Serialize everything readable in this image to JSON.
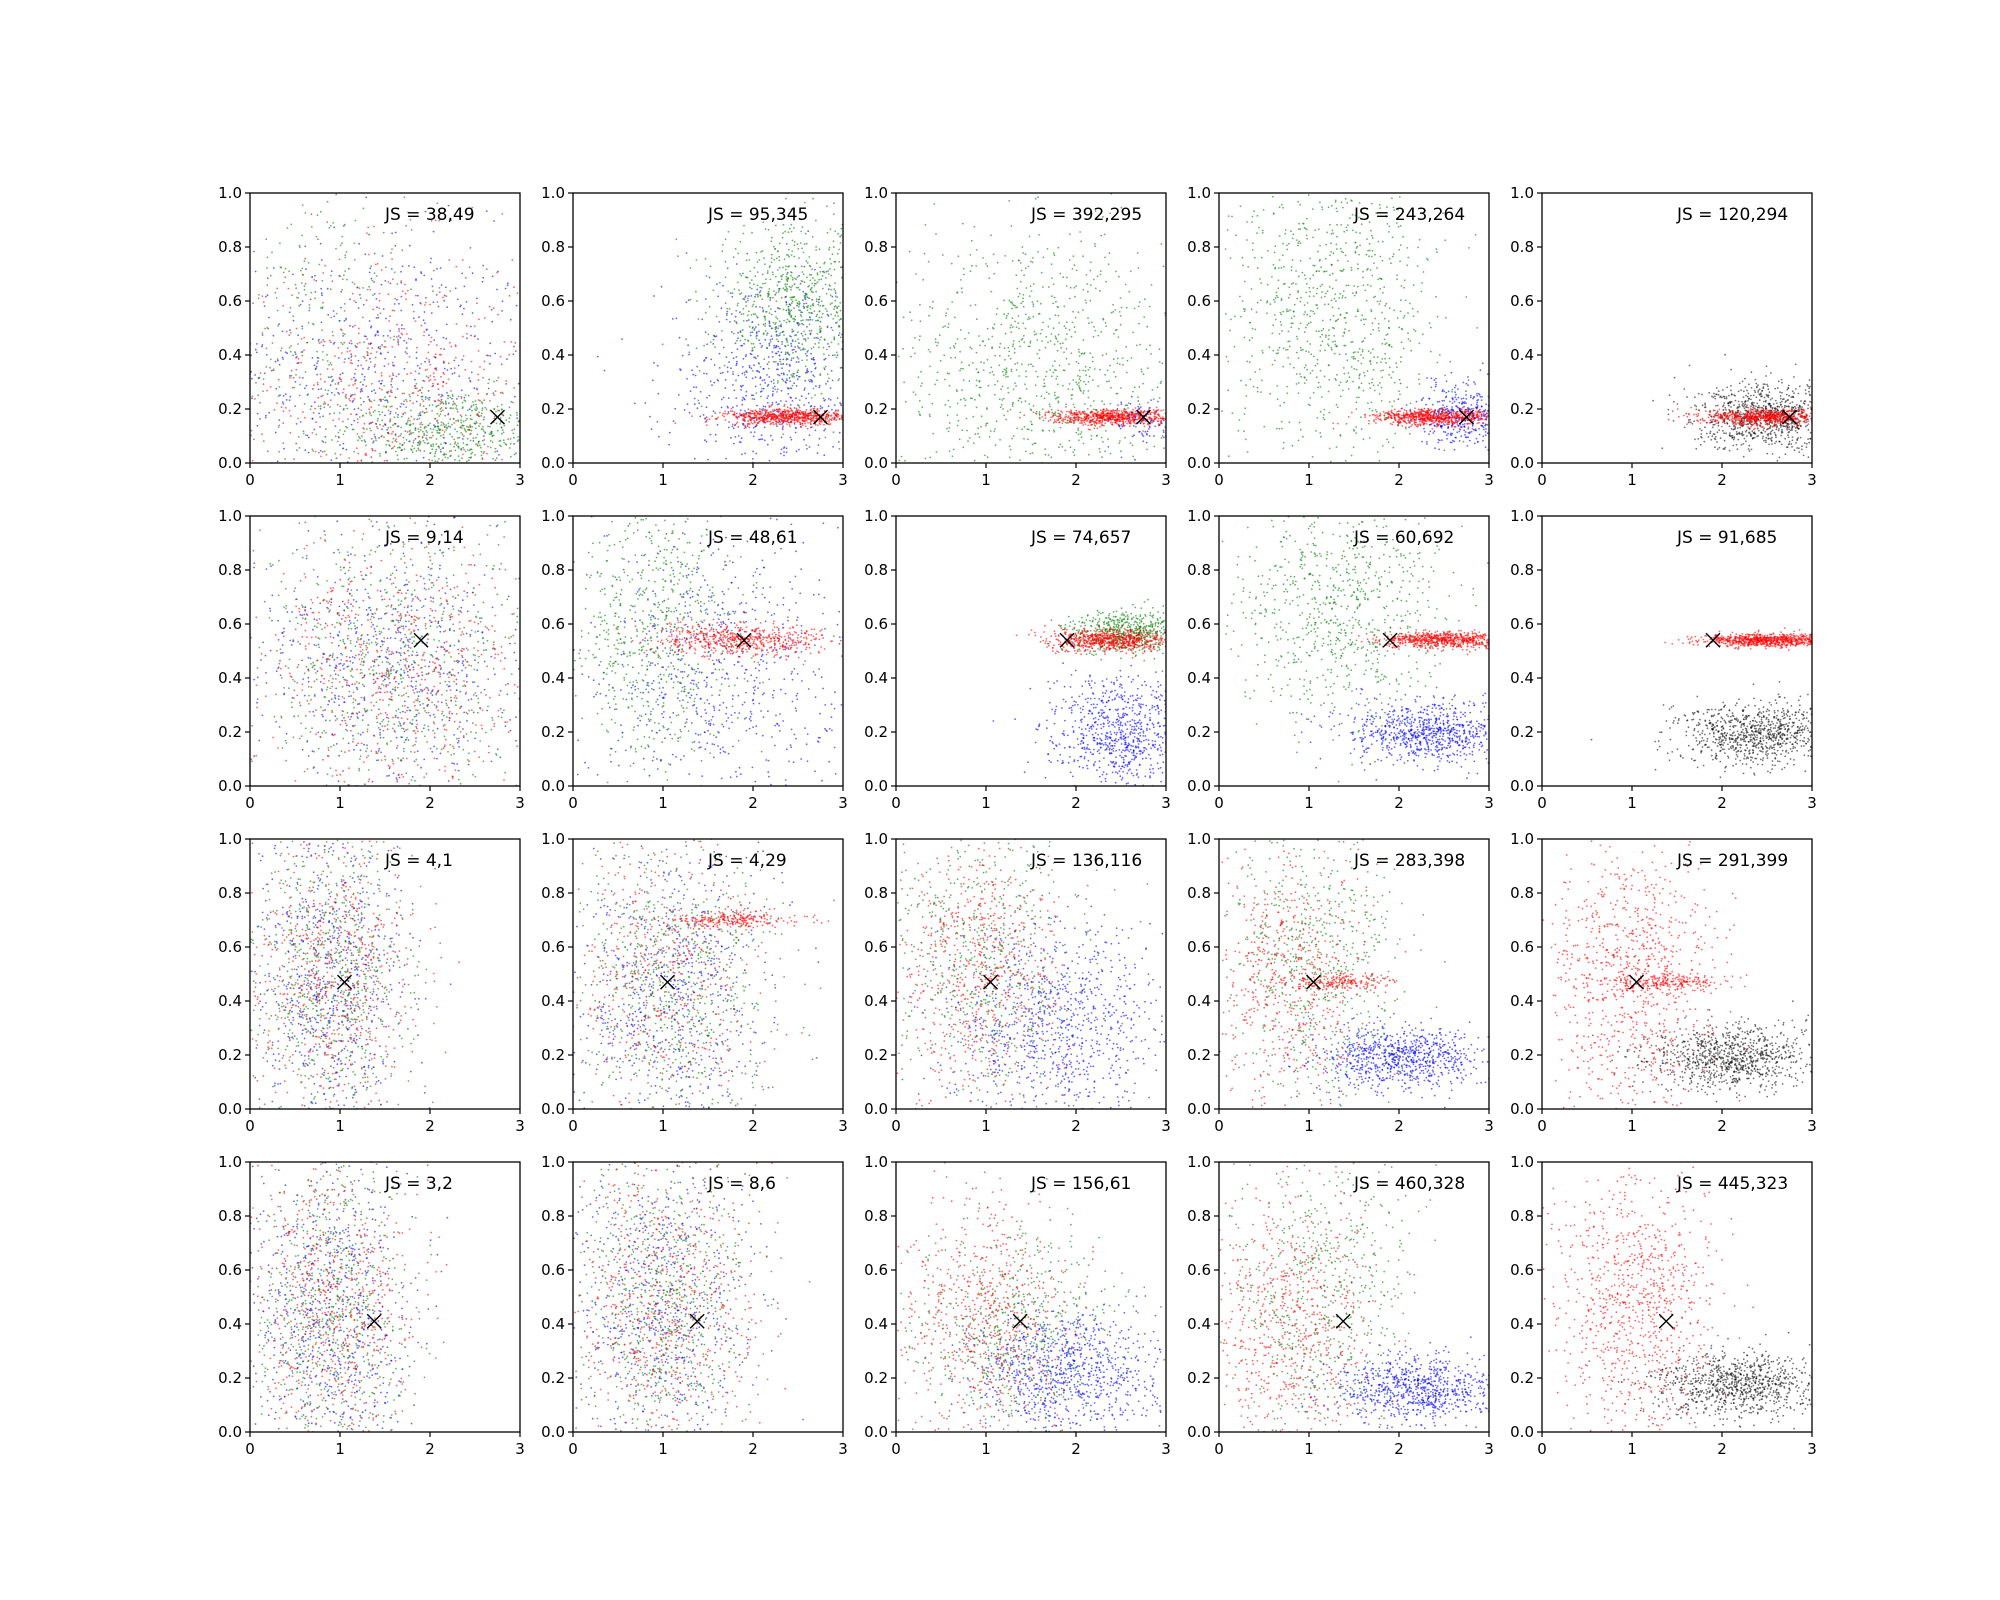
{
  "chart_data": {
    "type": "scatter",
    "layout": {
      "rows": 4,
      "cols": 5
    },
    "xlim": [
      0,
      3
    ],
    "ylim": [
      0,
      1
    ],
    "xticks": [
      "0",
      "1",
      "2",
      "3"
    ],
    "yticks": [
      "0.0",
      "0.2",
      "0.4",
      "0.6",
      "0.8",
      "1.0"
    ],
    "colors": {
      "red": "#ff0000",
      "green": "#008000",
      "blue": "#0000ff",
      "black": "#000000"
    },
    "panels": [
      {
        "label": "JS = 38,49",
        "marker": [
          2.75,
          0.17
        ],
        "clusters": [
          {
            "color": "blue",
            "n": 600,
            "cx": 1.4,
            "cy": 0.35,
            "sx": 0.9,
            "sy": 0.25
          },
          {
            "color": "green",
            "n": 600,
            "cx": 2.2,
            "cy": 0.12,
            "sx": 0.6,
            "sy": 0.08
          },
          {
            "color": "red",
            "n": 600,
            "cx": 1.6,
            "cy": 0.3,
            "sx": 0.8,
            "sy": 0.25
          },
          {
            "color": "green",
            "n": 250,
            "cx": 0.8,
            "cy": 0.55,
            "sx": 0.5,
            "sy": 0.3
          }
        ]
      },
      {
        "label": "JS = 95,345",
        "marker": [
          2.75,
          0.17
        ],
        "clusters": [
          {
            "color": "blue",
            "n": 700,
            "cx": 2.2,
            "cy": 0.3,
            "sx": 0.6,
            "sy": 0.2
          },
          {
            "color": "green",
            "n": 800,
            "cx": 2.5,
            "cy": 0.58,
            "sx": 0.45,
            "sy": 0.15
          },
          {
            "color": "red",
            "n": 700,
            "cx": 2.4,
            "cy": 0.17,
            "sx": 0.35,
            "sy": 0.015
          }
        ]
      },
      {
        "label": "JS = 392,295",
        "marker": [
          2.75,
          0.17
        ],
        "clusters": [
          {
            "color": "green",
            "n": 1000,
            "cx": 1.6,
            "cy": 0.35,
            "sx": 0.8,
            "sy": 0.28
          },
          {
            "color": "red",
            "n": 700,
            "cx": 2.4,
            "cy": 0.17,
            "sx": 0.35,
            "sy": 0.015
          },
          {
            "color": "blue",
            "n": 80,
            "cx": 2.8,
            "cy": 0.15,
            "sx": 0.2,
            "sy": 0.05
          }
        ]
      },
      {
        "label": "JS = 243,264",
        "marker": [
          2.75,
          0.17
        ],
        "clusters": [
          {
            "color": "green",
            "n": 900,
            "cx": 1.3,
            "cy": 0.55,
            "sx": 0.6,
            "sy": 0.28
          },
          {
            "color": "blue",
            "n": 400,
            "cx": 2.7,
            "cy": 0.18,
            "sx": 0.25,
            "sy": 0.06
          },
          {
            "color": "red",
            "n": 700,
            "cx": 2.4,
            "cy": 0.17,
            "sx": 0.35,
            "sy": 0.015
          }
        ]
      },
      {
        "label": "JS = 120,294",
        "marker": [
          2.75,
          0.17
        ],
        "clusters": [
          {
            "color": "black",
            "n": 900,
            "cx": 2.5,
            "cy": 0.17,
            "sx": 0.4,
            "sy": 0.06
          },
          {
            "color": "red",
            "n": 700,
            "cx": 2.5,
            "cy": 0.17,
            "sx": 0.35,
            "sy": 0.015
          }
        ]
      },
      {
        "label": "JS = 9,14",
        "marker": [
          1.9,
          0.54
        ],
        "clusters": [
          {
            "color": "blue",
            "n": 700,
            "cx": 1.6,
            "cy": 0.45,
            "sx": 0.8,
            "sy": 0.25
          },
          {
            "color": "green",
            "n": 700,
            "cx": 1.6,
            "cy": 0.45,
            "sx": 0.8,
            "sy": 0.25
          },
          {
            "color": "red",
            "n": 700,
            "cx": 1.6,
            "cy": 0.45,
            "sx": 0.8,
            "sy": 0.25
          }
        ]
      },
      {
        "label": "JS = 48,61",
        "marker": [
          1.9,
          0.54
        ],
        "clusters": [
          {
            "color": "blue",
            "n": 700,
            "cx": 1.6,
            "cy": 0.4,
            "sx": 0.8,
            "sy": 0.28
          },
          {
            "color": "green",
            "n": 700,
            "cx": 0.9,
            "cy": 0.55,
            "sx": 0.5,
            "sy": 0.28
          },
          {
            "color": "red",
            "n": 600,
            "cx": 1.9,
            "cy": 0.54,
            "sx": 0.5,
            "sy": 0.03
          }
        ]
      },
      {
        "label": "JS = 74,657",
        "marker": [
          1.9,
          0.54
        ],
        "clusters": [
          {
            "color": "blue",
            "n": 800,
            "cx": 2.5,
            "cy": 0.2,
            "sx": 0.4,
            "sy": 0.1
          },
          {
            "color": "green",
            "n": 600,
            "cx": 2.6,
            "cy": 0.57,
            "sx": 0.35,
            "sy": 0.04
          },
          {
            "color": "red",
            "n": 700,
            "cx": 2.4,
            "cy": 0.54,
            "sx": 0.35,
            "sy": 0.02
          }
        ]
      },
      {
        "label": "JS = 60,692",
        "marker": [
          1.9,
          0.54
        ],
        "clusters": [
          {
            "color": "green",
            "n": 800,
            "cx": 1.3,
            "cy": 0.65,
            "sx": 0.6,
            "sy": 0.22
          },
          {
            "color": "blue",
            "n": 800,
            "cx": 2.3,
            "cy": 0.2,
            "sx": 0.45,
            "sy": 0.06
          },
          {
            "color": "red",
            "n": 700,
            "cx": 2.5,
            "cy": 0.54,
            "sx": 0.35,
            "sy": 0.015
          }
        ]
      },
      {
        "label": "JS = 91,685",
        "marker": [
          1.9,
          0.54
        ],
        "clusters": [
          {
            "color": "black",
            "n": 900,
            "cx": 2.4,
            "cy": 0.19,
            "sx": 0.45,
            "sy": 0.06
          },
          {
            "color": "red",
            "n": 800,
            "cx": 2.5,
            "cy": 0.54,
            "sx": 0.35,
            "sy": 0.012
          }
        ]
      },
      {
        "label": "JS = 4,1",
        "marker": [
          1.05,
          0.47
        ],
        "clusters": [
          {
            "color": "blue",
            "n": 700,
            "cx": 0.9,
            "cy": 0.5,
            "sx": 0.45,
            "sy": 0.28
          },
          {
            "color": "green",
            "n": 700,
            "cx": 0.9,
            "cy": 0.5,
            "sx": 0.45,
            "sy": 0.28
          },
          {
            "color": "red",
            "n": 700,
            "cx": 0.9,
            "cy": 0.5,
            "sx": 0.45,
            "sy": 0.28
          }
        ]
      },
      {
        "label": "JS = 4,29",
        "marker": [
          1.05,
          0.47
        ],
        "clusters": [
          {
            "color": "blue",
            "n": 700,
            "cx": 1.1,
            "cy": 0.45,
            "sx": 0.55,
            "sy": 0.28
          },
          {
            "color": "green",
            "n": 700,
            "cx": 1.1,
            "cy": 0.45,
            "sx": 0.55,
            "sy": 0.28
          },
          {
            "color": "red",
            "n": 500,
            "cx": 1.0,
            "cy": 0.5,
            "sx": 0.5,
            "sy": 0.28
          },
          {
            "color": "red",
            "n": 250,
            "cx": 1.8,
            "cy": 0.7,
            "sx": 0.35,
            "sy": 0.015
          }
        ]
      },
      {
        "label": "JS = 136,116",
        "marker": [
          1.05,
          0.47
        ],
        "clusters": [
          {
            "color": "blue",
            "n": 900,
            "cx": 1.8,
            "cy": 0.3,
            "sx": 0.6,
            "sy": 0.18
          },
          {
            "color": "green",
            "n": 600,
            "cx": 1.0,
            "cy": 0.55,
            "sx": 0.55,
            "sy": 0.28
          },
          {
            "color": "red",
            "n": 700,
            "cx": 0.9,
            "cy": 0.5,
            "sx": 0.5,
            "sy": 0.25
          }
        ]
      },
      {
        "label": "JS = 283,398",
        "marker": [
          1.05,
          0.47
        ],
        "clusters": [
          {
            "color": "blue",
            "n": 800,
            "cx": 2.0,
            "cy": 0.19,
            "sx": 0.45,
            "sy": 0.06
          },
          {
            "color": "green",
            "n": 600,
            "cx": 1.1,
            "cy": 0.55,
            "sx": 0.5,
            "sy": 0.25
          },
          {
            "color": "red",
            "n": 600,
            "cx": 0.8,
            "cy": 0.5,
            "sx": 0.45,
            "sy": 0.25
          },
          {
            "color": "red",
            "n": 200,
            "cx": 1.3,
            "cy": 0.47,
            "sx": 0.3,
            "sy": 0.015
          }
        ]
      },
      {
        "label": "JS = 291,399",
        "marker": [
          1.05,
          0.47
        ],
        "clusters": [
          {
            "color": "black",
            "n": 900,
            "cx": 2.1,
            "cy": 0.19,
            "sx": 0.45,
            "sy": 0.06
          },
          {
            "color": "red",
            "n": 900,
            "cx": 1.0,
            "cy": 0.5,
            "sx": 0.45,
            "sy": 0.25
          },
          {
            "color": "red",
            "n": 200,
            "cx": 1.4,
            "cy": 0.47,
            "sx": 0.3,
            "sy": 0.015
          }
        ]
      },
      {
        "label": "JS = 3,2",
        "marker": [
          1.38,
          0.41
        ],
        "clusters": [
          {
            "color": "blue",
            "n": 700,
            "cx": 0.9,
            "cy": 0.45,
            "sx": 0.45,
            "sy": 0.28
          },
          {
            "color": "green",
            "n": 700,
            "cx": 0.9,
            "cy": 0.45,
            "sx": 0.45,
            "sy": 0.28
          },
          {
            "color": "red",
            "n": 700,
            "cx": 0.9,
            "cy": 0.45,
            "sx": 0.45,
            "sy": 0.28
          }
        ]
      },
      {
        "label": "JS = 8,6",
        "marker": [
          1.38,
          0.41
        ],
        "clusters": [
          {
            "color": "blue",
            "n": 700,
            "cx": 1.0,
            "cy": 0.45,
            "sx": 0.5,
            "sy": 0.28
          },
          {
            "color": "green",
            "n": 700,
            "cx": 1.0,
            "cy": 0.45,
            "sx": 0.5,
            "sy": 0.28
          },
          {
            "color": "red",
            "n": 700,
            "cx": 1.0,
            "cy": 0.45,
            "sx": 0.5,
            "sy": 0.28
          }
        ]
      },
      {
        "label": "JS = 156,61",
        "marker": [
          1.38,
          0.41
        ],
        "clusters": [
          {
            "color": "blue",
            "n": 900,
            "cx": 1.9,
            "cy": 0.22,
            "sx": 0.55,
            "sy": 0.12
          },
          {
            "color": "green",
            "n": 600,
            "cx": 1.3,
            "cy": 0.35,
            "sx": 0.6,
            "sy": 0.2
          },
          {
            "color": "red",
            "n": 700,
            "cx": 1.0,
            "cy": 0.4,
            "sx": 0.5,
            "sy": 0.25
          }
        ]
      },
      {
        "label": "JS = 460,328",
        "marker": [
          1.38,
          0.41
        ],
        "clusters": [
          {
            "color": "blue",
            "n": 800,
            "cx": 2.2,
            "cy": 0.16,
            "sx": 0.45,
            "sy": 0.06
          },
          {
            "color": "green",
            "n": 600,
            "cx": 1.1,
            "cy": 0.5,
            "sx": 0.5,
            "sy": 0.28
          },
          {
            "color": "red",
            "n": 700,
            "cx": 0.8,
            "cy": 0.4,
            "sx": 0.45,
            "sy": 0.25
          }
        ]
      },
      {
        "label": "JS = 445,323",
        "marker": [
          1.38,
          0.41
        ],
        "clusters": [
          {
            "color": "black",
            "n": 900,
            "cx": 2.2,
            "cy": 0.17,
            "sx": 0.45,
            "sy": 0.06
          },
          {
            "color": "red",
            "n": 900,
            "cx": 1.0,
            "cy": 0.45,
            "sx": 0.45,
            "sy": 0.25
          }
        ]
      }
    ]
  }
}
